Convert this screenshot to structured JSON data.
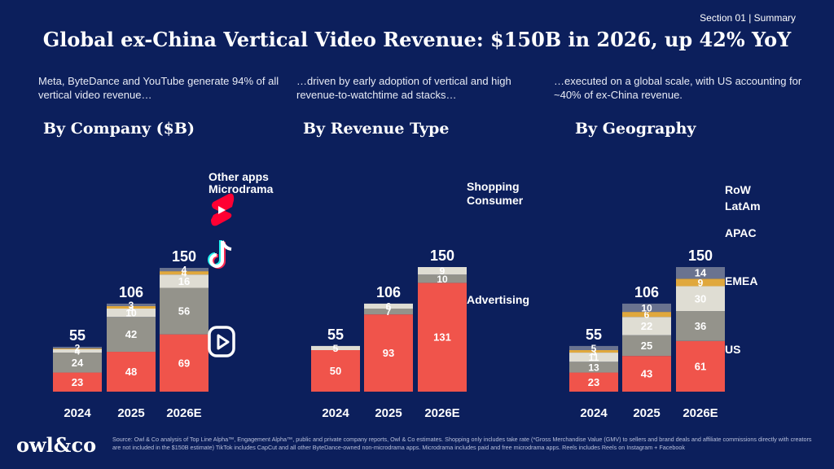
{
  "header": {
    "section": "Section 01 | Summary",
    "title": "Global ex-China Vertical Video Revenue: $150B in 2026, up 42% YoY"
  },
  "subtitles": [
    "Meta, ByteDance and YouTube generate 94% of all vertical video revenue…",
    "…driven by early adoption of vertical and high revenue-to-watchtime ad stacks…",
    "…executed on a global scale, with US accounting for ~40% of ex-China revenue."
  ],
  "panel_titles": [
    "By Company ($B)",
    "By Revenue Type",
    "By Geography"
  ],
  "footer": {
    "logo": "owl&co",
    "source": "Source: Owl & Co analysis of Top Line Alpha™, Engagement Alpha™, public and private company reports, Owl & Co estimates. Shopping only includes take rate (*Gross Merchandise Value (GMV) to sellers and brand deals and affiliate commissions directly with creators are not included in the $150B estimate) TikTok includes CapCut and all other ByteDance-owned non-microdrama apps. Microdrama includes paid and free microdrama apps. Reels includes Reels on Instagram + Facebook"
  },
  "colors": {
    "background": "#0c1f5c",
    "red": "#f0544b",
    "gray": "#94938b",
    "light": "#dfddd3",
    "gold": "#e0a83d",
    "slate": "#6a7390"
  },
  "chart_data": [
    {
      "type": "bar",
      "stacked": true,
      "title": "By Company ($B)",
      "categories": [
        "2024",
        "2025",
        "2026E"
      ],
      "totals": [
        55,
        106,
        150
      ],
      "series": [
        {
          "values": [
            23,
            48,
            69
          ],
          "color": "#f0544b",
          "icon": "reels-icon"
        },
        {
          "values": [
            24,
            42,
            56
          ],
          "color": "#94938b",
          "icon": "tiktok-icon"
        },
        {
          "values": [
            4,
            10,
            16
          ],
          "color": "#dfddd3",
          "icon": "youtube-shorts-icon"
        },
        {
          "name": "Microdrama",
          "values": [
            1,
            3,
            4
          ],
          "color": "#e0a83d",
          "labels": [
            "",
            "3",
            "4"
          ]
        },
        {
          "name": "Other apps",
          "values": [
            2,
            3,
            4
          ],
          "color": "#6a7390"
        }
      ]
    },
    {
      "type": "bar",
      "stacked": true,
      "title": "By Revenue Type",
      "categories": [
        "2024",
        "2025",
        "2026E"
      ],
      "totals": [
        55,
        106,
        150
      ],
      "series": [
        {
          "name": "Advertising",
          "values": [
            50,
            93,
            131
          ],
          "color": "#f0544b"
        },
        {
          "name": "Consumer",
          "values": [
            0,
            7,
            10
          ],
          "color": "#94938b",
          "labels": [
            "",
            "7",
            "10"
          ]
        },
        {
          "name": "Shopping",
          "values": [
            5,
            6,
            9
          ],
          "color": "#dfddd3"
        }
      ]
    },
    {
      "type": "bar",
      "stacked": true,
      "title": "By Geography",
      "categories": [
        "2024",
        "2025",
        "2026E"
      ],
      "totals": [
        55,
        106,
        150
      ],
      "series": [
        {
          "name": "US",
          "values": [
            23,
            43,
            61
          ],
          "color": "#f0544b"
        },
        {
          "name": "EMEA",
          "values": [
            13,
            25,
            36
          ],
          "color": "#94938b"
        },
        {
          "name": "APAC",
          "values": [
            11,
            22,
            30
          ],
          "color": "#dfddd3"
        },
        {
          "name": "LatAm",
          "values": [
            3,
            6,
            9
          ],
          "color": "#e0a83d"
        },
        {
          "name": "RoW",
          "values": [
            5,
            10,
            14
          ],
          "color": "#6a7390"
        }
      ]
    }
  ]
}
